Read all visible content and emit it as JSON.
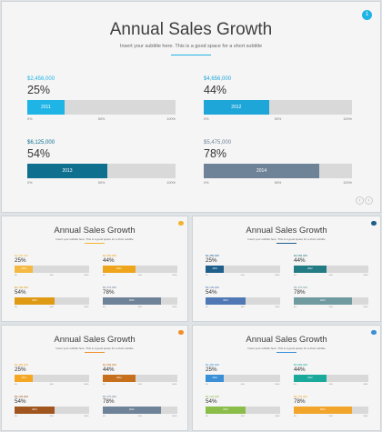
{
  "slides": [
    {
      "title": "Annual Sales Growth",
      "subtitle": "Insert your subtitle here. This is a good space for a short subtitle",
      "page": "1",
      "accent": "#1eb4e6",
      "ticks": [
        "0%",
        "50%",
        "100%"
      ],
      "items": [
        {
          "amount": "$2,456,000",
          "percent": "25%",
          "value": 0.25,
          "year": "2011",
          "color": "#1eb4e6",
          "amount_color": "#1eb4e6"
        },
        {
          "amount": "$4,656,000",
          "percent": "44%",
          "value": 0.44,
          "year": "2012",
          "color": "#1fa6d9",
          "amount_color": "#1fa6d9"
        },
        {
          "amount": "$6,125,000",
          "percent": "54%",
          "value": 0.54,
          "year": "2013",
          "color": "#0e6f8f",
          "amount_color": "#0e6f8f"
        },
        {
          "amount": "$5,475,000",
          "percent": "78%",
          "value": 0.78,
          "year": "2014",
          "color": "#6f8398",
          "amount_color": "#6f8398"
        }
      ]
    },
    {
      "title": "Annual Sales Growth",
      "subtitle": "Insert your subtitle here. This is a good space for a short subtitle",
      "accent": "#f2b430",
      "ticks": [
        "0%",
        "50%",
        "100%"
      ],
      "items": [
        {
          "amount": "$2,456,000",
          "percent": "25%",
          "value": 0.25,
          "year": "2011",
          "color": "#f4b942",
          "amount_color": "#f4b942"
        },
        {
          "amount": "$4,656,000",
          "percent": "44%",
          "value": 0.44,
          "year": "2012",
          "color": "#eea51b",
          "amount_color": "#eea51b"
        },
        {
          "amount": "$6,125,000",
          "percent": "54%",
          "value": 0.54,
          "year": "2013",
          "color": "#df9a14",
          "amount_color": "#df9a14"
        },
        {
          "amount": "$5,475,000",
          "percent": "78%",
          "value": 0.78,
          "year": "2014",
          "color": "#6f8398",
          "amount_color": "#6f8398"
        }
      ]
    },
    {
      "title": "Annual Sales Growth",
      "subtitle": "Insert your subtitle here. This is a good space for a short subtitle",
      "accent": "#1f5f8b",
      "ticks": [
        "0%",
        "50%",
        "100%"
      ],
      "items": [
        {
          "amount": "$2,456,000",
          "percent": "25%",
          "value": 0.25,
          "year": "2011",
          "color": "#1f5f8b",
          "amount_color": "#1f5f8b"
        },
        {
          "amount": "$4,656,000",
          "percent": "44%",
          "value": 0.44,
          "year": "2012",
          "color": "#237b83",
          "amount_color": "#237b83"
        },
        {
          "amount": "$6,125,000",
          "percent": "54%",
          "value": 0.54,
          "year": "2013",
          "color": "#4f78b4",
          "amount_color": "#4f78b4"
        },
        {
          "amount": "$5,475,000",
          "percent": "78%",
          "value": 0.78,
          "year": "2014",
          "color": "#6f9aa0",
          "amount_color": "#6f9aa0"
        }
      ]
    },
    {
      "title": "Annual Sales Growth",
      "subtitle": "Insert your subtitle here. This is a good space for a short subtitle",
      "accent": "#f0902a",
      "ticks": [
        "0%",
        "50%",
        "100%"
      ],
      "items": [
        {
          "amount": "$2,456,000",
          "percent": "25%",
          "value": 0.25,
          "year": "2011",
          "color": "#f5a623",
          "amount_color": "#f5a623"
        },
        {
          "amount": "$4,656,000",
          "percent": "44%",
          "value": 0.44,
          "year": "2012",
          "color": "#c6701e",
          "amount_color": "#c6701e"
        },
        {
          "amount": "$6,125,000",
          "percent": "54%",
          "value": 0.54,
          "year": "2013",
          "color": "#a1561f",
          "amount_color": "#a1561f"
        },
        {
          "amount": "$5,475,000",
          "percent": "78%",
          "value": 0.78,
          "year": "2014",
          "color": "#6f8398",
          "amount_color": "#6f8398"
        }
      ]
    },
    {
      "title": "Annual Sales Growth",
      "subtitle": "Insert your subtitle here. This is a good space for a short subtitle",
      "accent": "#3a8fd6",
      "ticks": [
        "0%",
        "50%",
        "100%"
      ],
      "items": [
        {
          "amount": "$2,456,000",
          "percent": "25%",
          "value": 0.25,
          "year": "2011",
          "color": "#3a8fd6",
          "amount_color": "#3a8fd6"
        },
        {
          "amount": "$4,656,000",
          "percent": "44%",
          "value": 0.44,
          "year": "2012",
          "color": "#1aa99a",
          "amount_color": "#1aa99a"
        },
        {
          "amount": "$6,125,000",
          "percent": "54%",
          "value": 0.54,
          "year": "2013",
          "color": "#8bbd4a",
          "amount_color": "#8bbd4a"
        },
        {
          "amount": "$5,475,000",
          "percent": "78%",
          "value": 0.78,
          "year": "2014",
          "color": "#f2a52b",
          "amount_color": "#f2a52b"
        }
      ]
    }
  ]
}
